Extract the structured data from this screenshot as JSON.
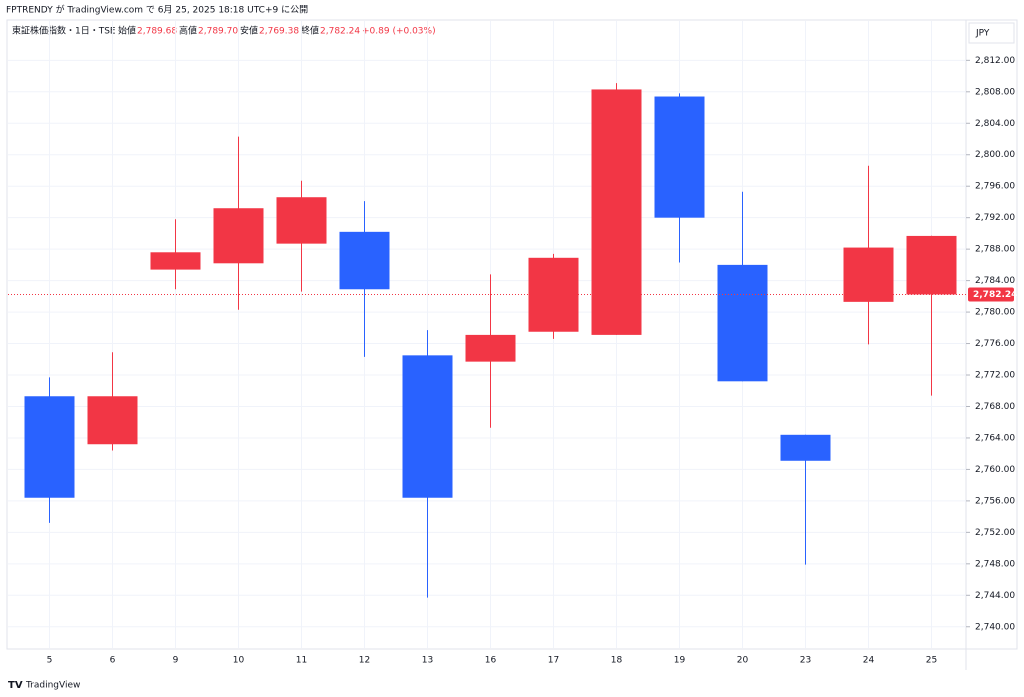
{
  "chart_data": {
    "type": "candlestick",
    "header": "FPTRENDY が TradingView.com で 6月 25, 2025 18:18 UTC+9 に公開",
    "symbol": "東証株価指数・1日・TSE",
    "ohlc_legend": [
      [
        "始値",
        "2,789.68"
      ],
      [
        "高値",
        "2,789.70"
      ],
      [
        "安値",
        "2,769.38"
      ],
      [
        "終値",
        "2,782.24"
      ]
    ],
    "change": "+0.89 (+0.03%)",
    "currency": "JPY",
    "brand": "TradingView",
    "categories": [
      "5",
      "6",
      "9",
      "10",
      "11",
      "12",
      "13",
      "16",
      "17",
      "18",
      "19",
      "20",
      "23",
      "24",
      "25"
    ],
    "open": [
      2756.4,
      2769.3,
      2787.6,
      2793.2,
      2794.6,
      2782.9,
      2756.4,
      2777.1,
      2786.9,
      2808.3,
      2792.0,
      2771.2,
      2761.1,
      2788.2,
      2789.68
    ],
    "high": [
      2771.7,
      2774.9,
      2791.8,
      2802.3,
      2796.7,
      2794.1,
      2777.7,
      2784.8,
      2787.4,
      2809.1,
      2807.8,
      2795.3,
      2764.4,
      2798.6,
      2789.7
    ],
    "low": [
      2753.2,
      2762.4,
      2782.9,
      2780.3,
      2782.6,
      2774.3,
      2743.7,
      2765.3,
      2776.6,
      2777.1,
      2786.3,
      2771.2,
      2747.9,
      2775.9,
      2769.38
    ],
    "close": [
      2769.3,
      2763.2,
      2785.4,
      2786.2,
      2788.7,
      2790.2,
      2774.5,
      2773.7,
      2777.5,
      2777.1,
      2807.4,
      2786.0,
      2764.4,
      2781.3,
      2782.24
    ],
    "up_color": "#2962ff",
    "down_color": "#f23645",
    "last_price": {
      "value": 2782.24,
      "label": "2,782.24"
    },
    "ylim": [
      2737.3,
      2817.0
    ],
    "yticks": [
      {
        "value": 2740,
        "label": "2,740.00"
      },
      {
        "value": 2744,
        "label": "2,744.00"
      },
      {
        "value": 2748,
        "label": "2,748.00"
      },
      {
        "value": 2752,
        "label": "2,752.00"
      },
      {
        "value": 2756,
        "label": "2,756.00"
      },
      {
        "value": 2760,
        "label": "2,760.00"
      },
      {
        "value": 2764,
        "label": "2,764.00"
      },
      {
        "value": 2768,
        "label": "2,768.00"
      },
      {
        "value": 2772,
        "label": "2,772.00"
      },
      {
        "value": 2776,
        "label": "2,776.00"
      },
      {
        "value": 2780,
        "label": "2,780.00"
      },
      {
        "value": 2784,
        "label": "2,784.00"
      },
      {
        "value": 2788,
        "label": "2,788.00"
      },
      {
        "value": 2792,
        "label": "2,792.00"
      },
      {
        "value": 2796,
        "label": "2,796.00"
      },
      {
        "value": 2800,
        "label": "2,800.00"
      },
      {
        "value": 2804,
        "label": "2,804.00"
      },
      {
        "value": 2808,
        "label": "2,808.00"
      },
      {
        "value": 2812,
        "label": "2,812.00"
      }
    ],
    "grid": true
  }
}
